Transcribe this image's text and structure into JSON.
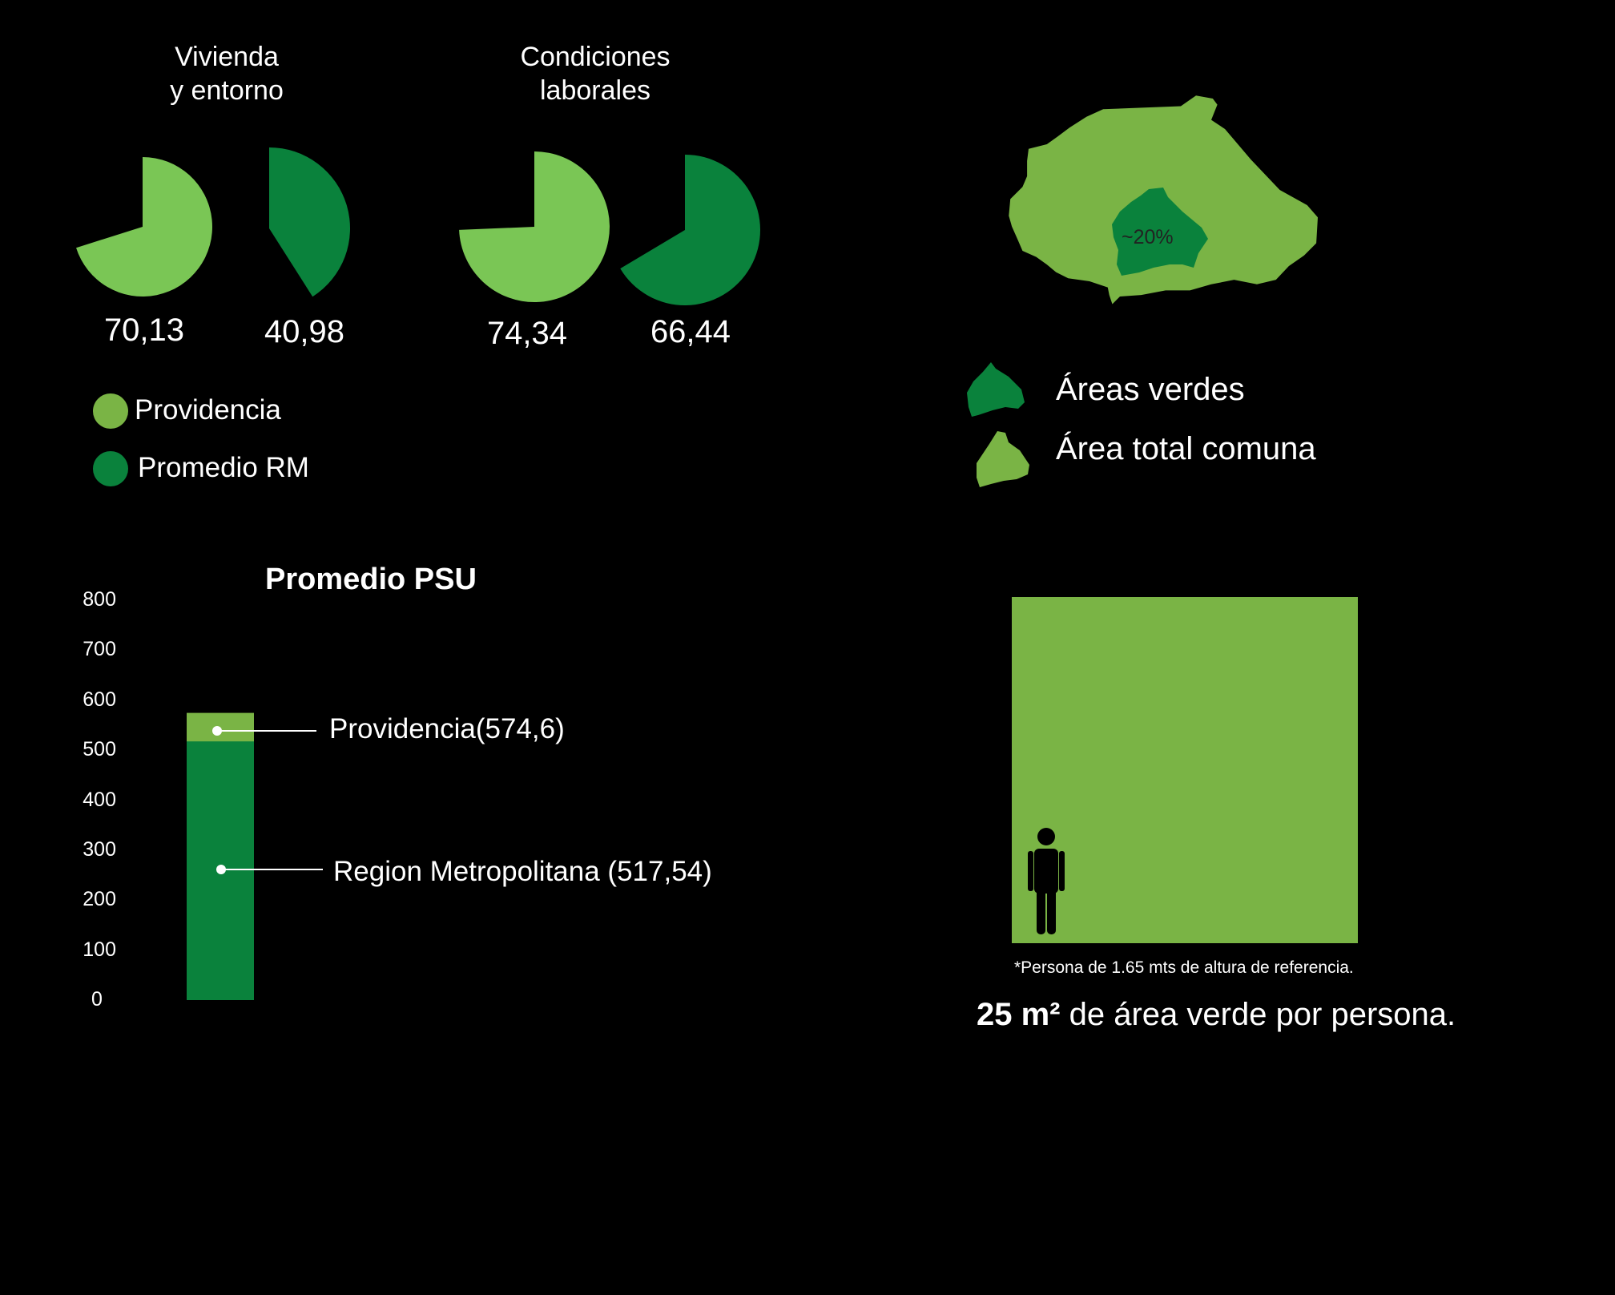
{
  "chart_data": [
    {
      "type": "pie",
      "groups": [
        {
          "title": "Vivienda\ny entorno",
          "slices": [
            {
              "series": "Providencia",
              "value": 70.13,
              "label": "70,13"
            },
            {
              "series": "Promedio RM",
              "value": 40.98,
              "label": "40,98"
            }
          ]
        },
        {
          "title": "Condiciones\nlaborales",
          "slices": [
            {
              "series": "Providencia",
              "value": 74.34,
              "label": "74,34"
            },
            {
              "series": "Promedio RM",
              "value": 66.44,
              "label": "66,44"
            }
          ]
        }
      ],
      "max": 100,
      "legend": [
        {
          "name": "Providencia",
          "color": "#7ab445"
        },
        {
          "name": "Promedio RM",
          "color": "#0a823c"
        }
      ]
    },
    {
      "type": "bar",
      "title": "Promedio PSU",
      "ylim": [
        0,
        800
      ],
      "yticks": [
        0,
        100,
        200,
        300,
        400,
        500,
        600,
        700,
        800
      ],
      "series": [
        {
          "name": "Region Metropolitana",
          "value": 517.54,
          "label": "Region Metropolitana (517,54)",
          "color": "#0a823c"
        },
        {
          "name": "Providencia",
          "value": 574.6,
          "label": "Providencia(574,6)",
          "color": "#7ab445"
        }
      ]
    }
  ],
  "map": {
    "inner_label": "~20%",
    "legend": [
      {
        "label": "Áreas verdes",
        "color": "#0a823c"
      },
      {
        "label": "Área total comuna",
        "color": "#7ab445"
      }
    ]
  },
  "green_area": {
    "footnote": "*Persona de 1.65 mts de altura de referencia.",
    "summary_bold": "25 m²",
    "summary_rest": " de área verde por persona.",
    "color": "#7ab445",
    "person_icon": "person-icon"
  },
  "colors": {
    "background": "#000000",
    "providencia": "#7ab445",
    "providencia_pie": "#7ac655",
    "rm": "#0a823c",
    "text": "#ffffff"
  }
}
